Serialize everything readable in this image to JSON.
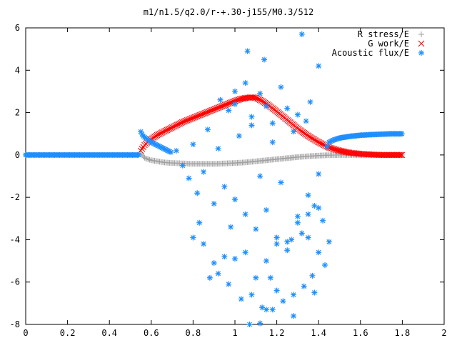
{
  "chart_data": {
    "type": "scatter",
    "title": "m1/n1.5/q2.0/r-+.30-j155/M0.3/512",
    "xlabel": "",
    "ylabel": "",
    "xlim": [
      0,
      2
    ],
    "ylim": [
      -8,
      6
    ],
    "x_ticks": [
      "0",
      "0.2",
      "0.4",
      "0.6",
      "0.8",
      "1",
      "1.2",
      "1.4",
      "1.6",
      "1.8",
      "2"
    ],
    "y_ticks": [
      "6",
      "4",
      "2",
      "0",
      "-2",
      "-4",
      "-6",
      "-8"
    ],
    "grid": false,
    "legend_position": "top-right",
    "series": [
      {
        "name": "R stress/E",
        "marker": "plus",
        "color": "#a0a0a0",
        "x": [
          0.55,
          0.57,
          0.6,
          0.63,
          0.66,
          0.7,
          0.75,
          0.8,
          0.85,
          0.9,
          0.95,
          1.0,
          1.05,
          1.1,
          1.15,
          1.2,
          1.25,
          1.3,
          1.35,
          1.4,
          1.45,
          1.5,
          1.55,
          1.6,
          1.65,
          1.7,
          1.75,
          1.8
        ],
        "y": [
          0.05,
          -0.15,
          -0.25,
          -0.3,
          -0.35,
          -0.38,
          -0.4,
          -0.42,
          -0.42,
          -0.42,
          -0.4,
          -0.38,
          -0.35,
          -0.3,
          -0.25,
          -0.2,
          -0.15,
          -0.1,
          -0.06,
          -0.03,
          -0.01,
          0.0,
          0.0,
          0.0,
          0.0,
          0.0,
          0.0,
          0.0
        ]
      },
      {
        "name": "G work/E",
        "marker": "cross",
        "color": "#ff0000",
        "x": [
          0.55,
          0.57,
          0.6,
          0.63,
          0.66,
          0.7,
          0.75,
          0.8,
          0.85,
          0.9,
          0.95,
          1.0,
          1.03,
          1.06,
          1.08,
          1.1,
          1.13,
          1.16,
          1.2,
          1.25,
          1.3,
          1.35,
          1.4,
          1.45,
          1.5,
          1.55,
          1.6,
          1.65,
          1.7,
          1.75,
          1.8
        ],
        "y": [
          0.2,
          0.5,
          0.75,
          0.95,
          1.1,
          1.3,
          1.55,
          1.75,
          1.95,
          2.15,
          2.35,
          2.55,
          2.65,
          2.7,
          2.72,
          2.7,
          2.55,
          2.35,
          2.05,
          1.65,
          1.25,
          0.9,
          0.6,
          0.35,
          0.2,
          0.1,
          0.05,
          0.02,
          0.0,
          0.0,
          0.0
        ]
      },
      {
        "name": "Acoustic flux/E",
        "marker": "star",
        "color": "#1f8fff",
        "x": [
          0.0,
          0.1,
          0.2,
          0.3,
          0.4,
          0.5,
          0.54,
          0.55,
          0.56,
          0.58,
          0.6,
          0.62,
          0.64,
          0.66,
          0.68,
          0.7,
          1.45,
          1.47,
          1.5,
          1.55,
          1.6,
          1.65,
          1.7,
          1.75,
          1.8,
          0.72,
          0.75,
          0.78,
          0.8,
          0.82,
          0.85,
          0.87,
          0.9,
          0.92,
          0.95,
          0.98,
          1.0,
          1.02,
          1.05,
          1.08,
          1.1,
          1.12,
          1.15,
          1.18,
          1.2,
          1.22,
          1.25,
          1.28,
          1.3,
          1.32,
          1.35,
          1.38,
          1.4,
          1.42,
          1.44,
          0.8,
          0.85,
          0.9,
          0.95,
          1.0,
          1.05,
          1.1,
          1.15,
          1.2,
          1.25,
          1.3,
          1.35,
          1.4,
          0.88,
          0.92,
          0.97,
          1.03,
          1.08,
          1.13,
          1.18,
          1.23,
          1.28,
          1.33,
          1.38,
          1.43,
          1.32,
          1.06,
          1.14,
          1.4,
          1.05,
          1.0,
          1.22,
          0.93,
          0.97,
          1.0,
          1.08,
          1.12,
          1.15,
          1.18,
          1.25,
          1.3,
          1.34,
          1.36,
          1.12,
          1.15,
          1.07,
          1.28,
          1.37,
          0.83,
          1.17,
          1.2,
          1.27,
          1.35,
          1.4,
          1.45
        ],
        "y": [
          0.0,
          0.0,
          0.0,
          0.0,
          0.0,
          0.0,
          0.0,
          1.1,
          0.9,
          0.75,
          0.6,
          0.5,
          0.4,
          0.3,
          0.2,
          0.1,
          0.6,
          0.7,
          0.8,
          0.88,
          0.93,
          0.96,
          0.98,
          1.0,
          1.0,
          0.2,
          -0.5,
          -1.1,
          0.5,
          -1.8,
          -0.8,
          1.2,
          -2.3,
          0.3,
          -1.5,
          -3.4,
          -2.1,
          0.9,
          -2.8,
          1.4,
          -3.5,
          -1.0,
          -2.6,
          0.6,
          -3.9,
          -1.3,
          -4.1,
          1.1,
          -2.9,
          -3.7,
          -1.9,
          -2.4,
          -0.9,
          -3.1,
          0.4,
          -3.9,
          -4.2,
          -5.1,
          -4.8,
          -4.9,
          -4.6,
          -5.8,
          -5.0,
          -4.2,
          -4.5,
          -3.2,
          -2.8,
          -2.5,
          -5.8,
          -5.6,
          -6.1,
          -6.8,
          -6.6,
          -7.2,
          -7.3,
          -6.9,
          -7.6,
          -6.2,
          -6.5,
          -5.2,
          5.7,
          4.9,
          4.5,
          4.2,
          3.4,
          3.0,
          3.2,
          2.6,
          2.1,
          2.4,
          1.8,
          2.9,
          2.3,
          1.5,
          2.2,
          1.9,
          1.6,
          2.5,
          -7.95,
          -7.3,
          -8.0,
          -6.6,
          -5.7,
          -3.2,
          -5.8,
          -6.4,
          -4.0,
          -3.9,
          -4.6,
          -4.1
        ]
      }
    ]
  }
}
